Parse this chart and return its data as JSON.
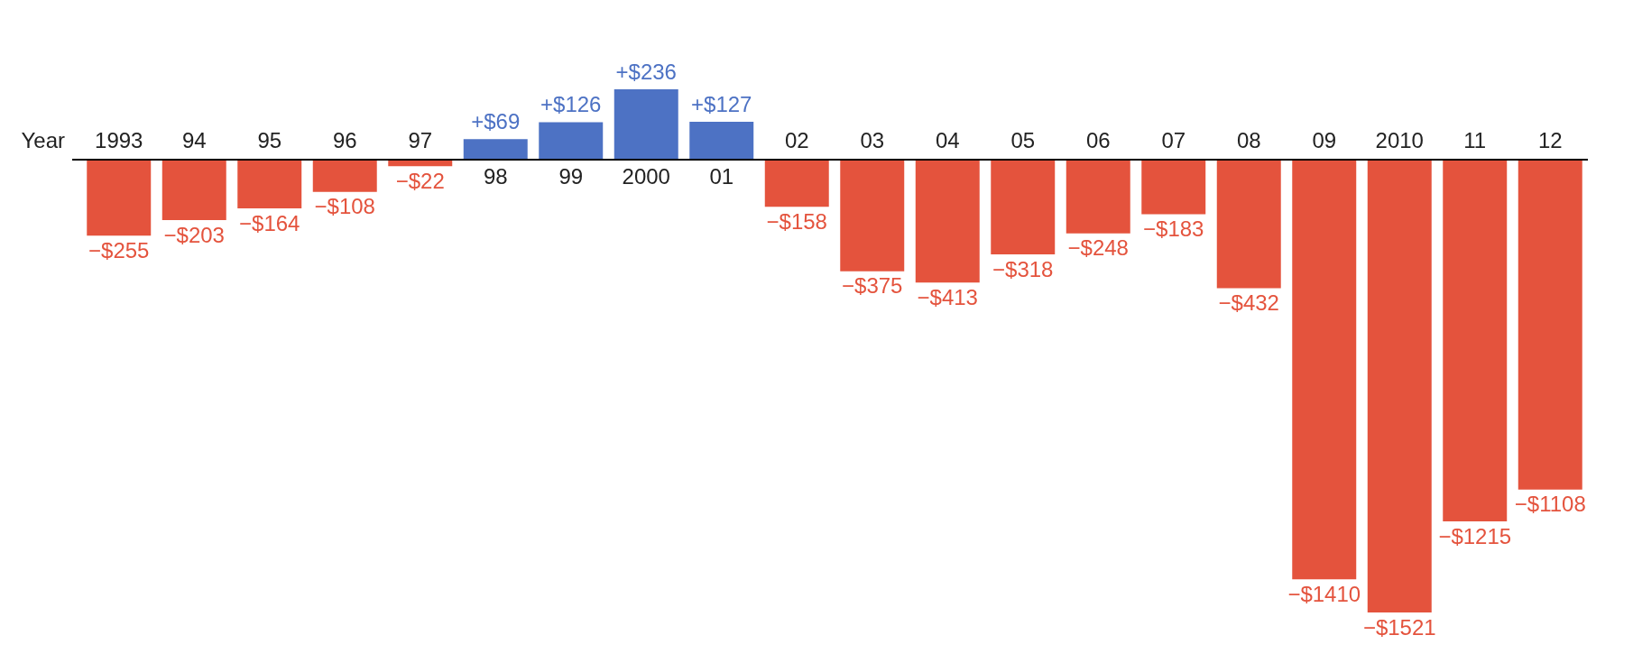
{
  "chart_data": {
    "type": "bar",
    "xlabel": "Year",
    "categories": [
      "1993",
      "94",
      "95",
      "96",
      "97",
      "98",
      "99",
      "2000",
      "01",
      "02",
      "03",
      "04",
      "05",
      "06",
      "07",
      "08",
      "09",
      "2010",
      "11",
      "12"
    ],
    "values": [
      -255,
      -203,
      -164,
      -108,
      -22,
      69,
      126,
      236,
      127,
      -158,
      -375,
      -413,
      -318,
      -248,
      -183,
      -432,
      -1410,
      -1521,
      -1215,
      -1108
    ],
    "value_labels": [
      "−$255",
      "−$203",
      "−$164",
      "−$108",
      "−$22",
      "+$69",
      "+$126",
      "+$236",
      "+$127",
      "−$158",
      "−$375",
      "−$413",
      "−$318",
      "−$248",
      "−$183",
      "−$432",
      "−$1410",
      "−$1521",
      "−$1215",
      "−$1108"
    ],
    "colors": [
      "#e4533d",
      "#e4533d",
      "#e4533d",
      "#e4533d",
      "#e4533d",
      "#4d72c4",
      "#4d72c4",
      "#4d72c4",
      "#4d72c4",
      "#e4533d",
      "#e4533d",
      "#e4533d",
      "#e4533d",
      "#e4533d",
      "#e4533d",
      "#e4533d",
      "#e4533d",
      "#e4533d",
      "#e4533d",
      "#e4533d"
    ],
    "legend": false
  }
}
